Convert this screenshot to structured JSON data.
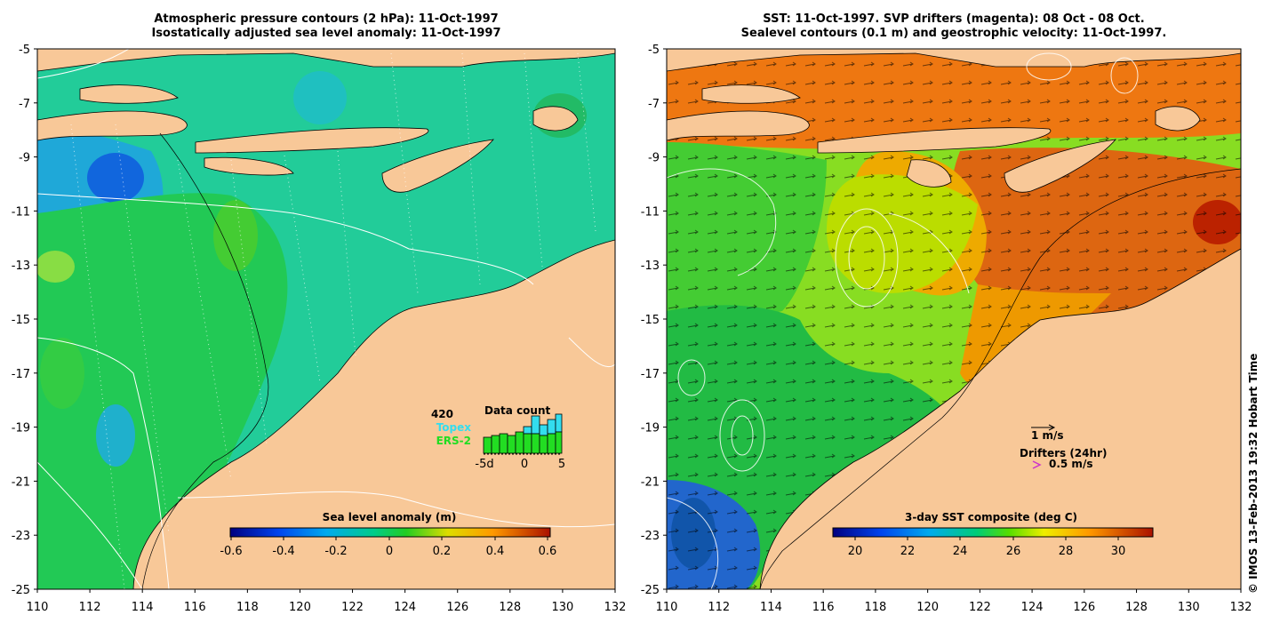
{
  "left_panel": {
    "title_line1": "Atmospheric pressure contours (2 hPa): 11-Oct-1997",
    "title_line2": "Isostatically adjusted sea level anomaly: 11-Oct-1997",
    "colorbar_title": "Sea level anomaly (m)",
    "colorbar_ticks": [
      "-0.6",
      "-0.4",
      "-0.2",
      "0",
      "0.2",
      "0.4",
      "0.6"
    ],
    "inset": {
      "count": "420",
      "title": "Data count",
      "legend_topex": "Topex",
      "legend_ers2": "ERS-2",
      "xticks": [
        "-5d",
        "0",
        "5"
      ],
      "colors": {
        "topex": "#33ddee",
        "ers2": "#22dd22"
      }
    }
  },
  "right_panel": {
    "title_line1": "SST: 11-Oct-1997. SVP drifters (magenta): 08 Oct - 08 Oct.",
    "title_line2": "Sealevel contours (0.1 m) and geostrophic velocity: 11-Oct-1997.",
    "colorbar_title": "3-day SST composite (deg C)",
    "colorbar_ticks": [
      "20",
      "22",
      "24",
      "26",
      "28",
      "30"
    ],
    "vector_scale_label": "1 m/s",
    "drifters_label": "Drifters (24hr)",
    "drifter_scale_label": "0.5 m/s",
    "drifter_color": "#cc33cc"
  },
  "axes": {
    "lat_ticks": [
      "-5",
      "-7",
      "-9",
      "-11",
      "-13",
      "-15",
      "-17",
      "-19",
      "-21",
      "-23",
      "-25"
    ],
    "lon_ticks": [
      "110",
      "112",
      "114",
      "116",
      "118",
      "120",
      "122",
      "124",
      "126",
      "128",
      "130",
      "132"
    ]
  },
  "colors": {
    "land": "#f8c898",
    "ocean_left": "#22cc99",
    "sst_warm": "#dd6611"
  },
  "copyright": "© IMOS 13-Feb-2013 19:32 Hobart Time"
}
